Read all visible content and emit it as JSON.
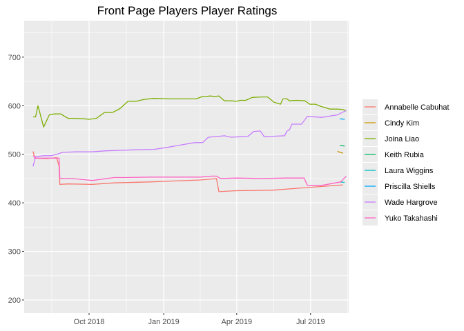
{
  "chart_data": {
    "type": "line",
    "title": "Front Page Players Player Ratings",
    "xlabel": "",
    "ylabel": "",
    "x_axis_type": "date",
    "xlim": [
      "2018-07-13",
      "2019-08-17"
    ],
    "ylim": [
      173,
      775
    ],
    "x_ticks": [
      {
        "date": "2018-10-01",
        "label": "Oct 2018"
      },
      {
        "date": "2019-01-01",
        "label": "Jan 2019"
      },
      {
        "date": "2019-04-01",
        "label": "Apr 2019"
      },
      {
        "date": "2019-07-01",
        "label": "Jul 2019"
      }
    ],
    "y_ticks": [
      200,
      300,
      400,
      500,
      600,
      700
    ],
    "grid": true,
    "legend_position": "right",
    "series": [
      {
        "name": "Annabelle Cabuhat",
        "color": "#F8766D",
        "points": [
          [
            "2018-07-24",
            506
          ],
          [
            "2018-07-26",
            492
          ],
          [
            "2018-08-10",
            491
          ],
          [
            "2018-08-22",
            493
          ],
          [
            "2018-08-25",
            476
          ],
          [
            "2018-08-26",
            438
          ],
          [
            "2018-09-05",
            439
          ],
          [
            "2018-10-05",
            438
          ],
          [
            "2018-11-01",
            441
          ],
          [
            "2018-12-15",
            443
          ],
          [
            "2019-01-15",
            445
          ],
          [
            "2019-02-15",
            447
          ],
          [
            "2019-03-01",
            449
          ],
          [
            "2019-03-07",
            450
          ],
          [
            "2019-03-10",
            423
          ],
          [
            "2019-04-01",
            425
          ],
          [
            "2019-05-15",
            426
          ],
          [
            "2019-06-15",
            430
          ],
          [
            "2019-07-01",
            432
          ],
          [
            "2019-08-10",
            437
          ]
        ]
      },
      {
        "name": "Cindy Kim",
        "color": "#CD9600",
        "points": [
          [
            "2019-08-03",
            506
          ],
          [
            "2019-08-10",
            502
          ]
        ]
      },
      {
        "name": "Joina Liao",
        "color": "#7CAE00",
        "points": [
          [
            "2018-07-24",
            577
          ],
          [
            "2018-07-27",
            577
          ],
          [
            "2018-07-30",
            600
          ],
          [
            "2018-08-06",
            556
          ],
          [
            "2018-08-13",
            581
          ],
          [
            "2018-08-19",
            583
          ],
          [
            "2018-08-27",
            583
          ],
          [
            "2018-09-05",
            574
          ],
          [
            "2018-09-15",
            574
          ],
          [
            "2018-09-25",
            573
          ],
          [
            "2018-10-01",
            572
          ],
          [
            "2018-10-10",
            574
          ],
          [
            "2018-10-20",
            586
          ],
          [
            "2018-10-30",
            586
          ],
          [
            "2018-11-08",
            594
          ],
          [
            "2018-11-18",
            609
          ],
          [
            "2018-11-28",
            609
          ],
          [
            "2018-12-08",
            613
          ],
          [
            "2018-12-20",
            615
          ],
          [
            "2019-01-10",
            614
          ],
          [
            "2019-02-01",
            614
          ],
          [
            "2019-02-10",
            614
          ],
          [
            "2019-02-18",
            619
          ],
          [
            "2019-02-23",
            619
          ],
          [
            "2019-02-27",
            620
          ],
          [
            "2019-03-05",
            619
          ],
          [
            "2019-03-10",
            620
          ],
          [
            "2019-03-17",
            610
          ],
          [
            "2019-03-25",
            610
          ],
          [
            "2019-04-01",
            609
          ],
          [
            "2019-04-05",
            611
          ],
          [
            "2019-04-12",
            611
          ],
          [
            "2019-04-20",
            617
          ],
          [
            "2019-05-01",
            618
          ],
          [
            "2019-05-09",
            618
          ],
          [
            "2019-05-17",
            607
          ],
          [
            "2019-05-25",
            603
          ],
          [
            "2019-05-28",
            614
          ],
          [
            "2019-06-02",
            614
          ],
          [
            "2019-06-05",
            610
          ],
          [
            "2019-06-14",
            611
          ],
          [
            "2019-06-24",
            610
          ],
          [
            "2019-06-30",
            603
          ],
          [
            "2019-07-07",
            603
          ],
          [
            "2019-07-13",
            599
          ],
          [
            "2019-07-19",
            596
          ],
          [
            "2019-07-25",
            593
          ],
          [
            "2019-08-03",
            593
          ],
          [
            "2019-08-10",
            592
          ],
          [
            "2019-08-14",
            589
          ]
        ]
      },
      {
        "name": "Keith Rubia",
        "color": "#00BE67",
        "points": [
          [
            "2019-08-06",
            518
          ],
          [
            "2019-08-12",
            517
          ]
        ]
      },
      {
        "name": "Laura Wiggins",
        "color": "#00BFC4",
        "points": [
          [
            "2019-08-06",
            443
          ],
          [
            "2019-08-12",
            442
          ]
        ]
      },
      {
        "name": "Priscilla Shiells",
        "color": "#00A9FF",
        "points": [
          [
            "2019-08-06",
            573
          ],
          [
            "2019-08-12",
            572
          ]
        ]
      },
      {
        "name": "Wade Hargrove",
        "color": "#C77CFF",
        "points": [
          [
            "2018-07-24",
            475
          ],
          [
            "2018-07-27",
            495
          ],
          [
            "2018-08-06",
            497
          ],
          [
            "2018-08-15",
            497
          ],
          [
            "2018-08-20",
            499
          ],
          [
            "2018-08-30",
            504
          ],
          [
            "2018-09-15",
            505
          ],
          [
            "2018-10-05",
            505
          ],
          [
            "2018-10-20",
            507
          ],
          [
            "2018-11-05",
            508
          ],
          [
            "2018-11-25",
            509
          ],
          [
            "2018-12-20",
            510
          ],
          [
            "2019-01-05",
            514
          ],
          [
            "2019-01-25",
            520
          ],
          [
            "2019-02-08",
            524
          ],
          [
            "2019-02-18",
            524
          ],
          [
            "2019-02-25",
            535
          ],
          [
            "2019-03-10",
            537
          ],
          [
            "2019-03-17",
            538
          ],
          [
            "2019-03-25",
            535
          ],
          [
            "2019-04-05",
            536
          ],
          [
            "2019-04-15",
            537
          ],
          [
            "2019-04-22",
            547
          ],
          [
            "2019-04-30",
            548
          ],
          [
            "2019-05-05",
            536
          ],
          [
            "2019-05-15",
            537
          ],
          [
            "2019-05-30",
            538
          ],
          [
            "2019-06-02",
            548
          ],
          [
            "2019-06-05",
            550
          ],
          [
            "2019-06-08",
            562
          ],
          [
            "2019-06-20",
            562
          ],
          [
            "2019-06-27",
            578
          ],
          [
            "2019-07-15",
            576
          ],
          [
            "2019-08-03",
            581
          ],
          [
            "2019-08-14",
            590
          ]
        ]
      },
      {
        "name": "Yuko Takahashi",
        "color": "#FF61C3",
        "points": [
          [
            "2018-07-24",
            497
          ],
          [
            "2018-07-27",
            492
          ],
          [
            "2018-08-25",
            492
          ],
          [
            "2018-08-26",
            450
          ],
          [
            "2018-09-10",
            450
          ],
          [
            "2018-10-05",
            446
          ],
          [
            "2018-11-01",
            452
          ],
          [
            "2018-11-15",
            452
          ],
          [
            "2018-12-15",
            453
          ],
          [
            "2019-01-15",
            453
          ],
          [
            "2019-02-15",
            453
          ],
          [
            "2019-03-01",
            455
          ],
          [
            "2019-03-07",
            455
          ],
          [
            "2019-03-12",
            450
          ],
          [
            "2019-04-01",
            451
          ],
          [
            "2019-05-01",
            450
          ],
          [
            "2019-06-01",
            451
          ],
          [
            "2019-06-23",
            451
          ],
          [
            "2019-06-27",
            436
          ],
          [
            "2019-07-15",
            436
          ],
          [
            "2019-08-07",
            443
          ],
          [
            "2019-08-14",
            455
          ]
        ]
      }
    ]
  }
}
